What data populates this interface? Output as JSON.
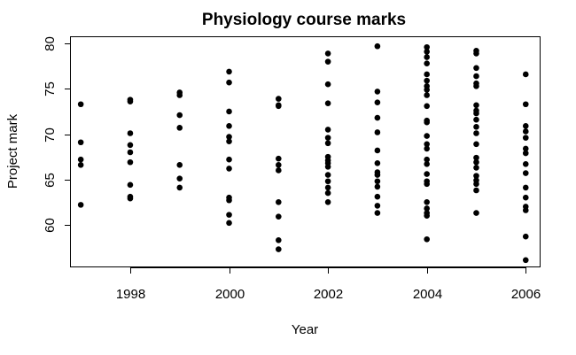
{
  "chart_data": {
    "type": "scatter",
    "title": "Physiology course marks",
    "xlabel": "Year",
    "ylabel": "Project mark",
    "xlim": [
      1996.8,
      2006.3
    ],
    "ylim": [
      55.3,
      80.7
    ],
    "xticks": [
      1998,
      2000,
      2002,
      2004,
      2006
    ],
    "yticks": [
      60,
      65,
      70,
      75,
      80
    ],
    "grid": false,
    "marker_color": "#000000",
    "points": [
      {
        "x": 1997,
        "y": 73.3
      },
      {
        "x": 1997,
        "y": 69.1
      },
      {
        "x": 1997,
        "y": 67.2
      },
      {
        "x": 1997,
        "y": 66.6
      },
      {
        "x": 1997,
        "y": 62.2
      },
      {
        "x": 1998,
        "y": 73.8
      },
      {
        "x": 1998,
        "y": 73.6
      },
      {
        "x": 1998,
        "y": 70.1
      },
      {
        "x": 1998,
        "y": 68.8
      },
      {
        "x": 1998,
        "y": 68.0
      },
      {
        "x": 1998,
        "y": 66.9
      },
      {
        "x": 1998,
        "y": 64.4
      },
      {
        "x": 1998,
        "y": 63.1
      },
      {
        "x": 1998,
        "y": 62.9
      },
      {
        "x": 1999,
        "y": 74.6
      },
      {
        "x": 1999,
        "y": 74.3
      },
      {
        "x": 1999,
        "y": 72.1
      },
      {
        "x": 1999,
        "y": 70.7
      },
      {
        "x": 1999,
        "y": 66.6
      },
      {
        "x": 1999,
        "y": 65.1
      },
      {
        "x": 1999,
        "y": 64.1
      },
      {
        "x": 2000,
        "y": 76.9
      },
      {
        "x": 2000,
        "y": 75.7
      },
      {
        "x": 2000,
        "y": 72.5
      },
      {
        "x": 2000,
        "y": 70.9
      },
      {
        "x": 2000,
        "y": 69.7
      },
      {
        "x": 2000,
        "y": 69.2
      },
      {
        "x": 2000,
        "y": 67.2
      },
      {
        "x": 2000,
        "y": 66.2
      },
      {
        "x": 2000,
        "y": 63.0
      },
      {
        "x": 2000,
        "y": 62.7
      },
      {
        "x": 2000,
        "y": 61.1
      },
      {
        "x": 2000,
        "y": 60.2
      },
      {
        "x": 2001,
        "y": 73.9
      },
      {
        "x": 2001,
        "y": 73.2
      },
      {
        "x": 2001,
        "y": 73.1
      },
      {
        "x": 2001,
        "y": 67.3
      },
      {
        "x": 2001,
        "y": 66.6
      },
      {
        "x": 2001,
        "y": 66.0
      },
      {
        "x": 2001,
        "y": 62.5
      },
      {
        "x": 2001,
        "y": 60.9
      },
      {
        "x": 2001,
        "y": 58.3
      },
      {
        "x": 2001,
        "y": 57.3
      },
      {
        "x": 2002,
        "y": 78.9
      },
      {
        "x": 2002,
        "y": 78.0
      },
      {
        "x": 2002,
        "y": 75.5
      },
      {
        "x": 2002,
        "y": 73.4
      },
      {
        "x": 2002,
        "y": 70.5
      },
      {
        "x": 2002,
        "y": 69.6
      },
      {
        "x": 2002,
        "y": 69.0
      },
      {
        "x": 2002,
        "y": 67.5
      },
      {
        "x": 2002,
        "y": 67.1
      },
      {
        "x": 2002,
        "y": 66.8
      },
      {
        "x": 2002,
        "y": 66.4
      },
      {
        "x": 2002,
        "y": 65.5
      },
      {
        "x": 2002,
        "y": 64.8
      },
      {
        "x": 2002,
        "y": 64.1
      },
      {
        "x": 2002,
        "y": 63.5
      },
      {
        "x": 2002,
        "y": 62.5
      },
      {
        "x": 2003,
        "y": 79.7
      },
      {
        "x": 2003,
        "y": 74.7
      },
      {
        "x": 2003,
        "y": 73.5
      },
      {
        "x": 2003,
        "y": 71.8
      },
      {
        "x": 2003,
        "y": 70.2
      },
      {
        "x": 2003,
        "y": 68.2
      },
      {
        "x": 2003,
        "y": 66.8
      },
      {
        "x": 2003,
        "y": 65.8
      },
      {
        "x": 2003,
        "y": 65.5
      },
      {
        "x": 2003,
        "y": 64.8
      },
      {
        "x": 2003,
        "y": 64.2
      },
      {
        "x": 2003,
        "y": 63.1
      },
      {
        "x": 2003,
        "y": 62.1
      },
      {
        "x": 2003,
        "y": 61.3
      },
      {
        "x": 2004,
        "y": 79.6
      },
      {
        "x": 2004,
        "y": 79.1
      },
      {
        "x": 2004,
        "y": 78.5
      },
      {
        "x": 2004,
        "y": 77.8
      },
      {
        "x": 2004,
        "y": 76.6
      },
      {
        "x": 2004,
        "y": 75.9
      },
      {
        "x": 2004,
        "y": 75.3
      },
      {
        "x": 2004,
        "y": 74.9
      },
      {
        "x": 2004,
        "y": 74.3
      },
      {
        "x": 2004,
        "y": 73.1
      },
      {
        "x": 2004,
        "y": 71.5
      },
      {
        "x": 2004,
        "y": 71.3
      },
      {
        "x": 2004,
        "y": 69.8
      },
      {
        "x": 2004,
        "y": 68.9
      },
      {
        "x": 2004,
        "y": 68.4
      },
      {
        "x": 2004,
        "y": 67.2
      },
      {
        "x": 2004,
        "y": 66.7
      },
      {
        "x": 2004,
        "y": 65.6
      },
      {
        "x": 2004,
        "y": 64.8
      },
      {
        "x": 2004,
        "y": 64.5
      },
      {
        "x": 2004,
        "y": 62.5
      },
      {
        "x": 2004,
        "y": 61.8
      },
      {
        "x": 2004,
        "y": 61.3
      },
      {
        "x": 2004,
        "y": 61.0
      },
      {
        "x": 2004,
        "y": 58.4
      },
      {
        "x": 2005,
        "y": 79.2
      },
      {
        "x": 2005,
        "y": 78.9
      },
      {
        "x": 2005,
        "y": 77.3
      },
      {
        "x": 2005,
        "y": 76.4
      },
      {
        "x": 2005,
        "y": 75.6
      },
      {
        "x": 2005,
        "y": 75.3
      },
      {
        "x": 2005,
        "y": 73.2
      },
      {
        "x": 2005,
        "y": 72.6
      },
      {
        "x": 2005,
        "y": 72.3
      },
      {
        "x": 2005,
        "y": 71.6
      },
      {
        "x": 2005,
        "y": 70.8
      },
      {
        "x": 2005,
        "y": 70.1
      },
      {
        "x": 2005,
        "y": 68.9
      },
      {
        "x": 2005,
        "y": 67.4
      },
      {
        "x": 2005,
        "y": 66.9
      },
      {
        "x": 2005,
        "y": 66.3
      },
      {
        "x": 2005,
        "y": 65.4
      },
      {
        "x": 2005,
        "y": 64.9
      },
      {
        "x": 2005,
        "y": 64.5
      },
      {
        "x": 2005,
        "y": 63.8
      },
      {
        "x": 2005,
        "y": 61.3
      },
      {
        "x": 2006,
        "y": 76.6
      },
      {
        "x": 2006,
        "y": 73.3
      },
      {
        "x": 2006,
        "y": 70.9
      },
      {
        "x": 2006,
        "y": 70.3
      },
      {
        "x": 2006,
        "y": 69.6
      },
      {
        "x": 2006,
        "y": 68.4
      },
      {
        "x": 2006,
        "y": 67.9
      },
      {
        "x": 2006,
        "y": 66.7
      },
      {
        "x": 2006,
        "y": 65.7
      },
      {
        "x": 2006,
        "y": 64.1
      },
      {
        "x": 2006,
        "y": 63.0
      },
      {
        "x": 2006,
        "y": 62.0
      },
      {
        "x": 2006,
        "y": 61.6
      },
      {
        "x": 2006,
        "y": 58.7
      },
      {
        "x": 2006,
        "y": 56.1
      }
    ]
  }
}
